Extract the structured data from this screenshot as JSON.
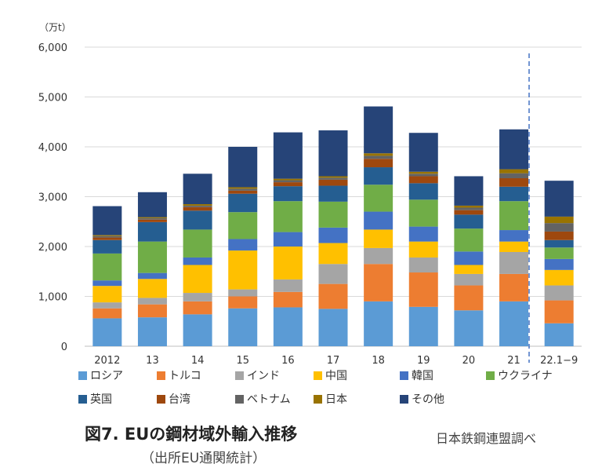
{
  "y_unit": "（万t）",
  "caption": {
    "title": "図7. EUの鋼材域外輸入推移",
    "source": "（出所EU通関統計）",
    "org": "日本鉄鋼連盟調べ"
  },
  "chart_data": {
    "type": "bar",
    "stacked": true,
    "ylim": [
      0,
      6000
    ],
    "yticks": [
      "0",
      "1,000",
      "2,000",
      "3,000",
      "4,000",
      "5,000",
      "6,000"
    ],
    "ytick_values": [
      0,
      1000,
      2000,
      3000,
      4000,
      5000,
      6000
    ],
    "grid": true,
    "legend_position": "bottom",
    "categories": [
      "2012",
      "13",
      "14",
      "15",
      "16",
      "17",
      "18",
      "19",
      "20",
      "21",
      "22.1−9"
    ],
    "series": [
      {
        "name": "ロシア",
        "color": "#5b9bd5",
        "values": [
          560,
          580,
          640,
          760,
          780,
          750,
          900,
          790,
          720,
          900,
          460
        ]
      },
      {
        "name": "トルコ",
        "color": "#ed7d31",
        "values": [
          200,
          260,
          260,
          240,
          310,
          500,
          750,
          690,
          500,
          550,
          460
        ]
      },
      {
        "name": "インド",
        "color": "#a5a5a5",
        "values": [
          120,
          130,
          170,
          140,
          250,
          400,
          320,
          300,
          230,
          440,
          300
        ]
      },
      {
        "name": "中国",
        "color": "#ffc000",
        "values": [
          330,
          380,
          560,
          780,
          660,
          420,
          370,
          320,
          180,
          210,
          310
        ]
      },
      {
        "name": "韓国",
        "color": "#4472c4",
        "values": [
          110,
          120,
          150,
          230,
          290,
          310,
          360,
          300,
          270,
          230,
          220
        ]
      },
      {
        "name": "ウクライナ",
        "color": "#70ad47",
        "values": [
          540,
          630,
          560,
          540,
          620,
          520,
          540,
          540,
          460,
          580,
          230
        ]
      },
      {
        "name": "英国",
        "color": "#255e91",
        "values": [
          270,
          390,
          380,
          370,
          300,
          320,
          350,
          330,
          280,
          290,
          150
        ]
      },
      {
        "name": "台湾",
        "color": "#9e480e",
        "values": [
          50,
          50,
          70,
          60,
          80,
          120,
          170,
          140,
          90,
          170,
          170
        ]
      },
      {
        "name": "ベトナム",
        "color": "#636363",
        "values": [
          30,
          30,
          30,
          40,
          40,
          40,
          60,
          50,
          50,
          100,
          170
        ]
      },
      {
        "name": "日本",
        "color": "#997300",
        "values": [
          20,
          20,
          30,
          30,
          30,
          30,
          50,
          40,
          40,
          80,
          130
        ]
      },
      {
        "name": "その他",
        "color": "#264478",
        "values": [
          580,
          500,
          610,
          810,
          930,
          920,
          940,
          780,
          590,
          800,
          720
        ]
      }
    ]
  }
}
